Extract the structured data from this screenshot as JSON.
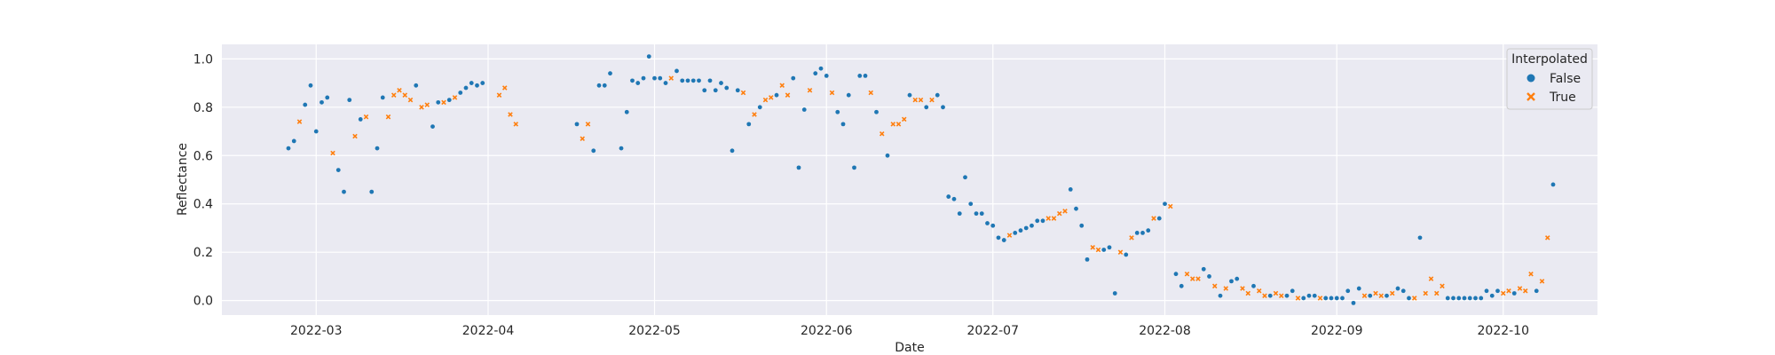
{
  "chart_data": {
    "type": "scatter",
    "xlabel": "Date",
    "ylabel": "Reflectance",
    "x_type": "date",
    "xlim": [
      "2022-02-12",
      "2022-10-18"
    ],
    "ylim": [
      -0.06,
      1.06
    ],
    "x_ticks": [
      "2022-03-01",
      "2022-04-01",
      "2022-05-01",
      "2022-06-01",
      "2022-07-01",
      "2022-08-01",
      "2022-09-01",
      "2022-10-01"
    ],
    "x_tick_labels": [
      "2022-03",
      "2022-04",
      "2022-05",
      "2022-06",
      "2022-07",
      "2022-08",
      "2022-09",
      "2022-10"
    ],
    "y_ticks": [
      0.0,
      0.2,
      0.4,
      0.6,
      0.8,
      1.0
    ],
    "y_tick_labels": [
      "0.0",
      "0.2",
      "0.4",
      "0.6",
      "0.8",
      "1.0"
    ],
    "grid": true,
    "background": "#eaeaf2",
    "legend": {
      "title": "Interpolated",
      "placement": "top-right"
    },
    "series": [
      {
        "name": "False",
        "marker": "circle",
        "color": "#1f77b4",
        "points": [
          [
            "2022-02-24",
            0.63
          ],
          [
            "2022-02-25",
            0.66
          ],
          [
            "2022-02-27",
            0.81
          ],
          [
            "2022-02-28",
            0.89
          ],
          [
            "2022-03-01",
            0.7
          ],
          [
            "2022-03-02",
            0.82
          ],
          [
            "2022-03-03",
            0.84
          ],
          [
            "2022-03-05",
            0.54
          ],
          [
            "2022-03-06",
            0.45
          ],
          [
            "2022-03-07",
            0.83
          ],
          [
            "2022-03-09",
            0.75
          ],
          [
            "2022-03-11",
            0.45
          ],
          [
            "2022-03-12",
            0.63
          ],
          [
            "2022-03-13",
            0.84
          ],
          [
            "2022-03-19",
            0.89
          ],
          [
            "2022-03-22",
            0.72
          ],
          [
            "2022-03-23",
            0.82
          ],
          [
            "2022-03-25",
            0.83
          ],
          [
            "2022-03-27",
            0.86
          ],
          [
            "2022-03-28",
            0.88
          ],
          [
            "2022-03-29",
            0.9
          ],
          [
            "2022-03-30",
            0.89
          ],
          [
            "2022-03-31",
            0.9
          ],
          [
            "2022-04-17",
            0.73
          ],
          [
            "2022-04-20",
            0.62
          ],
          [
            "2022-04-21",
            0.89
          ],
          [
            "2022-04-22",
            0.89
          ],
          [
            "2022-04-23",
            0.94
          ],
          [
            "2022-04-25",
            0.63
          ],
          [
            "2022-04-26",
            0.78
          ],
          [
            "2022-04-27",
            0.91
          ],
          [
            "2022-04-28",
            0.9
          ],
          [
            "2022-04-29",
            0.92
          ],
          [
            "2022-04-30",
            1.01
          ],
          [
            "2022-05-01",
            0.92
          ],
          [
            "2022-05-02",
            0.92
          ],
          [
            "2022-05-03",
            0.9
          ],
          [
            "2022-05-05",
            0.95
          ],
          [
            "2022-05-06",
            0.91
          ],
          [
            "2022-05-07",
            0.91
          ],
          [
            "2022-05-08",
            0.91
          ],
          [
            "2022-05-09",
            0.91
          ],
          [
            "2022-05-10",
            0.87
          ],
          [
            "2022-05-11",
            0.91
          ],
          [
            "2022-05-12",
            0.87
          ],
          [
            "2022-05-13",
            0.9
          ],
          [
            "2022-05-14",
            0.88
          ],
          [
            "2022-05-15",
            0.62
          ],
          [
            "2022-05-16",
            0.87
          ],
          [
            "2022-05-18",
            0.73
          ],
          [
            "2022-05-20",
            0.8
          ],
          [
            "2022-05-23",
            0.85
          ],
          [
            "2022-05-26",
            0.92
          ],
          [
            "2022-05-27",
            0.55
          ],
          [
            "2022-05-28",
            0.79
          ],
          [
            "2022-05-30",
            0.94
          ],
          [
            "2022-05-31",
            0.96
          ],
          [
            "2022-06-01",
            0.93
          ],
          [
            "2022-06-03",
            0.78
          ],
          [
            "2022-06-04",
            0.73
          ],
          [
            "2022-06-05",
            0.85
          ],
          [
            "2022-06-06",
            0.55
          ],
          [
            "2022-06-07",
            0.93
          ],
          [
            "2022-06-08",
            0.93
          ],
          [
            "2022-06-10",
            0.78
          ],
          [
            "2022-06-12",
            0.6
          ],
          [
            "2022-06-16",
            0.85
          ],
          [
            "2022-06-19",
            0.8
          ],
          [
            "2022-06-21",
            0.85
          ],
          [
            "2022-06-22",
            0.8
          ],
          [
            "2022-06-23",
            0.43
          ],
          [
            "2022-06-24",
            0.42
          ],
          [
            "2022-06-25",
            0.36
          ],
          [
            "2022-06-26",
            0.51
          ],
          [
            "2022-06-27",
            0.4
          ],
          [
            "2022-06-28",
            0.36
          ],
          [
            "2022-06-29",
            0.36
          ],
          [
            "2022-06-30",
            0.32
          ],
          [
            "2022-07-01",
            0.31
          ],
          [
            "2022-07-02",
            0.26
          ],
          [
            "2022-07-03",
            0.25
          ],
          [
            "2022-07-05",
            0.28
          ],
          [
            "2022-07-06",
            0.29
          ],
          [
            "2022-07-07",
            0.3
          ],
          [
            "2022-07-08",
            0.31
          ],
          [
            "2022-07-09",
            0.33
          ],
          [
            "2022-07-10",
            0.33
          ],
          [
            "2022-07-15",
            0.46
          ],
          [
            "2022-07-16",
            0.38
          ],
          [
            "2022-07-17",
            0.31
          ],
          [
            "2022-07-18",
            0.17
          ],
          [
            "2022-07-21",
            0.21
          ],
          [
            "2022-07-22",
            0.22
          ],
          [
            "2022-07-23",
            0.03
          ],
          [
            "2022-07-25",
            0.19
          ],
          [
            "2022-07-27",
            0.28
          ],
          [
            "2022-07-28",
            0.28
          ],
          [
            "2022-07-29",
            0.29
          ],
          [
            "2022-07-31",
            0.34
          ],
          [
            "2022-08-01",
            0.4
          ],
          [
            "2022-08-03",
            0.11
          ],
          [
            "2022-08-04",
            0.06
          ],
          [
            "2022-08-08",
            0.13
          ],
          [
            "2022-08-09",
            0.1
          ],
          [
            "2022-08-11",
            0.02
          ],
          [
            "2022-08-13",
            0.08
          ],
          [
            "2022-08-14",
            0.09
          ],
          [
            "2022-08-17",
            0.06
          ],
          [
            "2022-08-20",
            0.02
          ],
          [
            "2022-08-23",
            0.02
          ],
          [
            "2022-08-24",
            0.04
          ],
          [
            "2022-08-26",
            0.01
          ],
          [
            "2022-08-27",
            0.02
          ],
          [
            "2022-08-28",
            0.02
          ],
          [
            "2022-08-30",
            0.01
          ],
          [
            "2022-08-31",
            0.01
          ],
          [
            "2022-09-01",
            0.01
          ],
          [
            "2022-09-02",
            0.01
          ],
          [
            "2022-09-03",
            0.04
          ],
          [
            "2022-09-04",
            -0.01
          ],
          [
            "2022-09-05",
            0.05
          ],
          [
            "2022-09-07",
            0.02
          ],
          [
            "2022-09-10",
            0.02
          ],
          [
            "2022-09-12",
            0.05
          ],
          [
            "2022-09-13",
            0.04
          ],
          [
            "2022-09-14",
            0.01
          ],
          [
            "2022-09-16",
            0.26
          ],
          [
            "2022-09-21",
            0.01
          ],
          [
            "2022-09-22",
            0.01
          ],
          [
            "2022-09-23",
            0.01
          ],
          [
            "2022-09-24",
            0.01
          ],
          [
            "2022-09-25",
            0.01
          ],
          [
            "2022-09-26",
            0.01
          ],
          [
            "2022-09-27",
            0.01
          ],
          [
            "2022-09-28",
            0.04
          ],
          [
            "2022-09-29",
            0.02
          ],
          [
            "2022-09-30",
            0.04
          ],
          [
            "2022-10-03",
            0.03
          ],
          [
            "2022-10-07",
            0.04
          ],
          [
            "2022-10-10",
            0.48
          ]
        ]
      },
      {
        "name": "True",
        "marker": "x",
        "color": "#ff7f0e",
        "points": [
          [
            "2022-02-26",
            0.74
          ],
          [
            "2022-03-04",
            0.61
          ],
          [
            "2022-03-08",
            0.68
          ],
          [
            "2022-03-10",
            0.76
          ],
          [
            "2022-03-14",
            0.76
          ],
          [
            "2022-03-15",
            0.85
          ],
          [
            "2022-03-16",
            0.87
          ],
          [
            "2022-03-17",
            0.85
          ],
          [
            "2022-03-18",
            0.83
          ],
          [
            "2022-03-20",
            0.8
          ],
          [
            "2022-03-21",
            0.81
          ],
          [
            "2022-03-24",
            0.82
          ],
          [
            "2022-03-26",
            0.84
          ],
          [
            "2022-04-03",
            0.85
          ],
          [
            "2022-04-04",
            0.88
          ],
          [
            "2022-04-05",
            0.77
          ],
          [
            "2022-04-06",
            0.73
          ],
          [
            "2022-04-18",
            0.67
          ],
          [
            "2022-04-19",
            0.73
          ],
          [
            "2022-05-04",
            0.92
          ],
          [
            "2022-05-17",
            0.86
          ],
          [
            "2022-05-19",
            0.77
          ],
          [
            "2022-05-21",
            0.83
          ],
          [
            "2022-05-22",
            0.84
          ],
          [
            "2022-05-24",
            0.89
          ],
          [
            "2022-05-25",
            0.85
          ],
          [
            "2022-05-29",
            0.87
          ],
          [
            "2022-06-02",
            0.86
          ],
          [
            "2022-06-09",
            0.86
          ],
          [
            "2022-06-11",
            0.69
          ],
          [
            "2022-06-13",
            0.73
          ],
          [
            "2022-06-14",
            0.73
          ],
          [
            "2022-06-15",
            0.75
          ],
          [
            "2022-06-17",
            0.83
          ],
          [
            "2022-06-18",
            0.83
          ],
          [
            "2022-06-20",
            0.83
          ],
          [
            "2022-07-04",
            0.27
          ],
          [
            "2022-07-11",
            0.34
          ],
          [
            "2022-07-12",
            0.34
          ],
          [
            "2022-07-13",
            0.36
          ],
          [
            "2022-07-14",
            0.37
          ],
          [
            "2022-07-19",
            0.22
          ],
          [
            "2022-07-20",
            0.21
          ],
          [
            "2022-07-24",
            0.2
          ],
          [
            "2022-07-26",
            0.26
          ],
          [
            "2022-07-30",
            0.34
          ],
          [
            "2022-08-02",
            0.39
          ],
          [
            "2022-08-05",
            0.11
          ],
          [
            "2022-08-06",
            0.09
          ],
          [
            "2022-08-07",
            0.09
          ],
          [
            "2022-08-10",
            0.06
          ],
          [
            "2022-08-12",
            0.05
          ],
          [
            "2022-08-15",
            0.05
          ],
          [
            "2022-08-16",
            0.03
          ],
          [
            "2022-08-18",
            0.04
          ],
          [
            "2022-08-19",
            0.02
          ],
          [
            "2022-08-21",
            0.03
          ],
          [
            "2022-08-22",
            0.02
          ],
          [
            "2022-08-25",
            0.01
          ],
          [
            "2022-08-29",
            0.01
          ],
          [
            "2022-09-06",
            0.02
          ],
          [
            "2022-09-08",
            0.03
          ],
          [
            "2022-09-09",
            0.02
          ],
          [
            "2022-09-11",
            0.03
          ],
          [
            "2022-09-15",
            0.01
          ],
          [
            "2022-09-17",
            0.03
          ],
          [
            "2022-09-18",
            0.09
          ],
          [
            "2022-09-19",
            0.03
          ],
          [
            "2022-09-20",
            0.06
          ],
          [
            "2022-10-01",
            0.03
          ],
          [
            "2022-10-02",
            0.04
          ],
          [
            "2022-10-04",
            0.05
          ],
          [
            "2022-10-05",
            0.04
          ],
          [
            "2022-10-06",
            0.11
          ],
          [
            "2022-10-08",
            0.08
          ],
          [
            "2022-10-09",
            0.26
          ]
        ]
      }
    ]
  },
  "colors": {
    "plot_background": "#eaeaf2",
    "grid": "#ffffff",
    "text": "#262626",
    "series_false": "#1f77b4",
    "series_true": "#ff7f0e"
  }
}
